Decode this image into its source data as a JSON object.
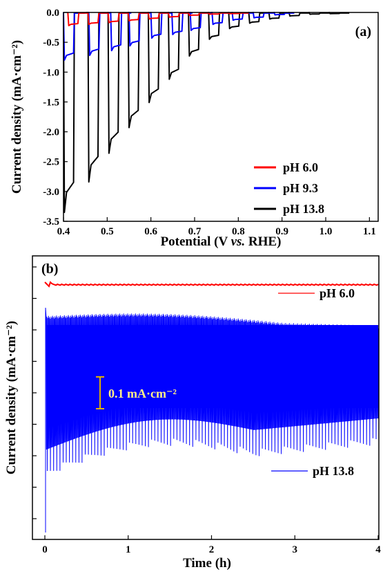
{
  "chart_data": [
    {
      "panel_label": "(a)",
      "type": "line",
      "xlabel_parts": [
        "Potential (V ",
        "vs.",
        " RHE)"
      ],
      "ylabel": "Current density (mA·cm⁻²)",
      "xlim": [
        0.4,
        1.12
      ],
      "ylim": [
        -3.5,
        0.0
      ],
      "xticks": [
        0.4,
        0.5,
        0.6,
        0.7,
        0.8,
        0.9,
        1.0,
        1.1
      ],
      "xtick_labels": [
        "0.4",
        "0.5",
        "0.6",
        "0.7",
        "0.8",
        "0.9",
        "1.0",
        "1.1"
      ],
      "yticks": [
        0.0,
        -0.5,
        -1.0,
        -1.5,
        -2.0,
        -2.5,
        -3.0,
        -3.5
      ],
      "ytick_labels": [
        "0.0",
        "-0.5",
        "-1.0",
        "-1.5",
        "-2.0",
        "-2.5",
        "-3.0",
        "-3.5"
      ],
      "chopped_light": {
        "period_V": 0.046,
        "series": [
          {
            "name": "pH 6.0",
            "color": "#ff0000",
            "on_start": [
              0.41,
              0.456,
              0.502,
              0.548,
              0.594,
              0.64,
              0.686,
              0.732,
              0.778
            ],
            "photocurrent": [
              -0.22,
              -0.2,
              -0.17,
              -0.14,
              -0.11,
              -0.08,
              -0.05,
              -0.03,
              -0.02
            ]
          },
          {
            "name": "pH 9.3",
            "color": "#0000ff",
            "on_start": [
              0.4,
              0.458,
              0.508,
              0.55,
              0.6,
              0.648,
              0.69,
              0.74,
              0.786,
              0.834,
              0.882
            ],
            "photocurrent": [
              -0.8,
              -0.72,
              -0.64,
              -0.56,
              -0.43,
              -0.37,
              -0.3,
              -0.2,
              -0.13,
              -0.09,
              -0.04
            ]
          },
          {
            "name": "pH 13.8",
            "color": "#000000",
            "on_start": [
              0.4,
              0.456,
              0.502,
              0.548,
              0.594,
              0.64,
              0.686,
              0.732,
              0.778,
              0.824,
              0.87,
              0.916,
              0.962,
              1.008
            ],
            "photocurrent": [
              -3.35,
              -2.84,
              -2.36,
              -1.93,
              -1.51,
              -1.12,
              -0.73,
              -0.45,
              -0.27,
              -0.18,
              -0.11,
              -0.06,
              -0.03,
              -0.02
            ]
          }
        ]
      }
    },
    {
      "panel_label": "(b)",
      "type": "line",
      "xlabel": "Time (h)",
      "ylabel": "Current density (mA·cm⁻²)",
      "xlim": [
        0,
        4
      ],
      "xticks": [
        0,
        1,
        2,
        3,
        4
      ],
      "xtick_labels": [
        "0",
        "1",
        "2",
        "3",
        "4"
      ],
      "y_tick_count": 9,
      "y_unlabeled": true,
      "scale_bar": {
        "value": 0.1,
        "label": "0.1 mA·cm⁻²",
        "color": "#e0b000"
      },
      "series": [
        {
          "name": "pH 6.0",
          "color": "#ff0000"
        },
        {
          "name": "pH 13.8",
          "color": "#0000ff"
        }
      ]
    }
  ]
}
